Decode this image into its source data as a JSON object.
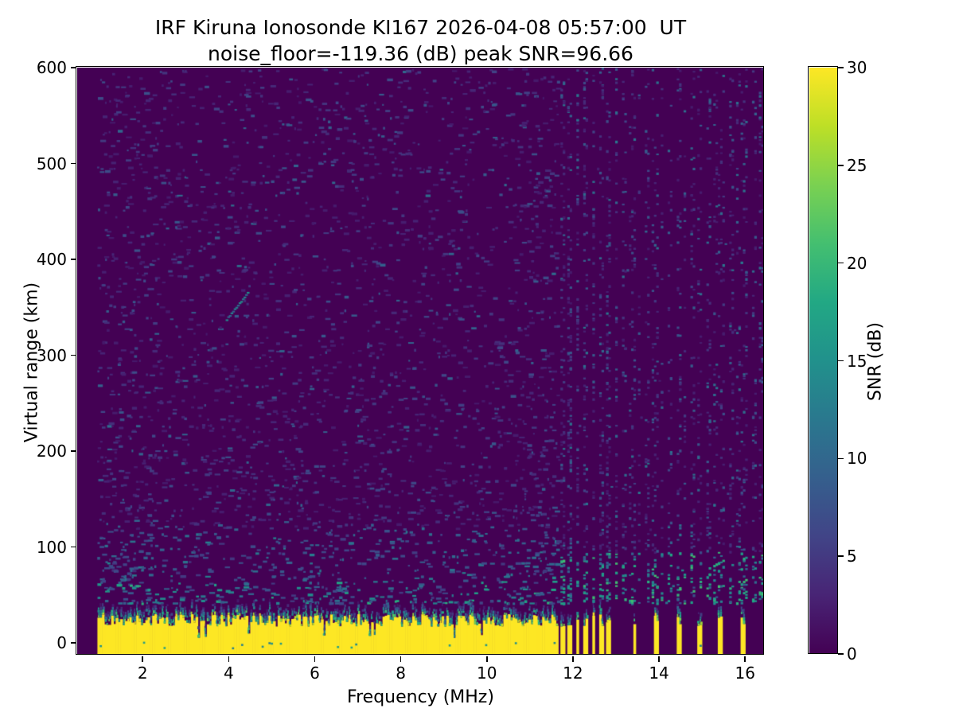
{
  "chart_data": {
    "type": "heatmap",
    "title": "IRF Kiruna Ionosonde KI167 2026-04-08 05:57:00  UT",
    "subtitle": "noise_floor=-119.36 (dB) peak SNR=96.66",
    "station_id": "KI167",
    "datetime_ut": "2026-04-08 05:57:00",
    "noise_floor_db": -119.36,
    "peak_snr_db": 96.66,
    "xlabel": "Frequency (MHz)",
    "ylabel": "Virtual range (km)",
    "colorbar_label": "SNR (dB)",
    "xlim": [
      0.48,
      16.44
    ],
    "ylim": [
      -12.4,
      600
    ],
    "clim": [
      0,
      30
    ],
    "x_ticks": [
      2,
      4,
      6,
      8,
      10,
      12,
      14,
      16
    ],
    "y_ticks": [
      0,
      100,
      200,
      300,
      400,
      500,
      600
    ],
    "colorbar_ticks": [
      0,
      5,
      10,
      15,
      20,
      25,
      30
    ],
    "grid": false,
    "legend": false,
    "background": "#ffffff",
    "axis_color": "#000000",
    "colormap": "viridis",
    "colormap_stops": [
      "#440154",
      "#482475",
      "#414487",
      "#355f8d",
      "#2a788e",
      "#21918c",
      "#22a884",
      "#44bf70",
      "#7ad151",
      "#bddf26",
      "#fde725"
    ],
    "features": {
      "description": "Dark viridis background of sparse horizontal noise speckles; saturated yellow ground-echo band from bottom edge up to ~20-35 km with ragged green/teal top and occasional notches; continuous band from 0.95 to 11.64 MHz, then narrow vertical stripe columns; columnar noise speckles at restricted frequencies above 11.6 MHz; faint diagonal echo trace near 4 MHz at ~350 km",
      "data_start_mhz": 0.95,
      "solid_band_end_mhz": 11.64,
      "band_top_km_range": [
        17,
        30
      ],
      "dense_stripes_mhz": {
        "start": 11.69,
        "end": 12.95,
        "period": 0.178,
        "width": 0.085
      },
      "isolated_stripes_mhz": [
        13.43,
        13.95,
        14.47,
        14.96,
        15.43,
        15.94
      ],
      "echo_trace": {
        "f0": 3.93,
        "km0": 338,
        "f1": 4.42,
        "km1": 366
      },
      "seed": 20260408
    }
  }
}
